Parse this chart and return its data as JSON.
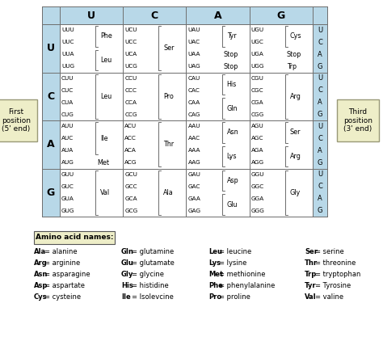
{
  "bg_color": "#ffffff",
  "table_bg": "#b8d8e8",
  "cell_bg": "#ffffff",
  "label_box_bg": "#eeeec8",
  "rows": [
    "U",
    "C",
    "A",
    "G"
  ],
  "cols": [
    "U",
    "C",
    "A",
    "G"
  ],
  "first_position_label": "First\nposition\n(5' end)",
  "third_position_label": "Third\nposition\n(3' end)",
  "amino_acid_names_label": "Amino acid names:",
  "legend": [
    [
      "Ala = alanine",
      "Gln = glutamine",
      "Leu = leucine",
      "Ser = serine"
    ],
    [
      "Arg = arginine",
      "Glu = glutamate",
      "Lys = lysine",
      "Thr = threonine"
    ],
    [
      "Asn = asparagine",
      "Gly = glycine",
      "Met = methionine",
      "Trp = tryptophan"
    ],
    [
      "Asp = aspartate",
      "His = histidine",
      "Phe = phenylalanine",
      "Tyr = Tyrosine"
    ],
    [
      "Cys = cysteine",
      "Ile = Isolevcine",
      "Pro = proline",
      "Val = valine"
    ]
  ],
  "cells": {
    "UU": {
      "codons": [
        "UUU",
        "UUC",
        "UUA",
        "UUG"
      ],
      "aas": [
        [
          "Phe",
          [
            0,
            1
          ]
        ],
        [
          "Leu",
          [
            2,
            3
          ]
        ]
      ]
    },
    "UC": {
      "codons": [
        "UCU",
        "UCC",
        "UCA",
        "UCG"
      ],
      "aas": [
        [
          "Ser",
          [
            0,
            1,
            2,
            3
          ]
        ]
      ]
    },
    "UA": {
      "codons": [
        "UAU",
        "UAC",
        "UAA",
        "UAG"
      ],
      "aas": [
        [
          "Tyr",
          [
            0,
            1
          ]
        ],
        [
          "Stop",
          [
            2
          ]
        ],
        [
          "Stop",
          [
            3
          ]
        ]
      ]
    },
    "UG": {
      "codons": [
        "UGU",
        "UGC",
        "UGA",
        "UGG"
      ],
      "aas": [
        [
          "Cys",
          [
            0,
            1
          ]
        ],
        [
          "Stop",
          [
            2
          ]
        ],
        [
          "Trp",
          [
            3
          ]
        ]
      ]
    },
    "CU": {
      "codons": [
        "CUU",
        "CUC",
        "CUA",
        "CUG"
      ],
      "aas": [
        [
          "Leu",
          [
            0,
            1,
            2,
            3
          ]
        ]
      ]
    },
    "CC": {
      "codons": [
        "CCU",
        "CCC",
        "CCA",
        "CCG"
      ],
      "aas": [
        [
          "Pro",
          [
            0,
            1,
            2,
            3
          ]
        ]
      ]
    },
    "CA": {
      "codons": [
        "CAU",
        "CAC",
        "CAA",
        "CAG"
      ],
      "aas": [
        [
          "His",
          [
            0,
            1
          ]
        ],
        [
          "Gln",
          [
            2,
            3
          ]
        ]
      ]
    },
    "CG": {
      "codons": [
        "CGU",
        "CGC",
        "CGA",
        "CGG"
      ],
      "aas": [
        [
          "Arg",
          [
            0,
            1,
            2,
            3
          ]
        ]
      ]
    },
    "AU": {
      "codons": [
        "AUU",
        "AUC",
        "AUA",
        "AUG"
      ],
      "aas": [
        [
          "Ile",
          [
            0,
            1,
            2
          ]
        ],
        [
          "Met",
          [
            3
          ]
        ]
      ]
    },
    "AC": {
      "codons": [
        "ACU",
        "ACC",
        "ACA",
        "ACG"
      ],
      "aas": [
        [
          "Thr",
          [
            0,
            1,
            2,
            3
          ]
        ]
      ]
    },
    "AA": {
      "codons": [
        "AAU",
        "AAC",
        "AAA",
        "AAG"
      ],
      "aas": [
        [
          "Asn",
          [
            0,
            1
          ]
        ],
        [
          "Lys",
          [
            2,
            3
          ]
        ]
      ]
    },
    "AG": {
      "codons": [
        "AGU",
        "AGC",
        "AGA",
        "AGG"
      ],
      "aas": [
        [
          "Ser",
          [
            0,
            1
          ]
        ],
        [
          "Arg",
          [
            2,
            3
          ]
        ]
      ]
    },
    "GU": {
      "codons": [
        "GUU",
        "GUC",
        "GUA",
        "GUG"
      ],
      "aas": [
        [
          "Val",
          [
            0,
            1,
            2,
            3
          ]
        ]
      ]
    },
    "GC": {
      "codons": [
        "GCU",
        "GCC",
        "GCA",
        "GCG"
      ],
      "aas": [
        [
          "Ala",
          [
            0,
            1,
            2,
            3
          ]
        ]
      ]
    },
    "GA": {
      "codons": [
        "GAU",
        "GAC",
        "GAA",
        "GAG"
      ],
      "aas": [
        [
          "Asp",
          [
            0,
            1
          ]
        ],
        [
          "Glu",
          [
            2,
            3
          ]
        ]
      ]
    },
    "GG": {
      "codons": [
        "GGU",
        "GGC",
        "GGA",
        "GGG"
      ],
      "aas": [
        [
          "Gly",
          [
            0,
            1,
            2,
            3
          ]
        ]
      ]
    }
  }
}
